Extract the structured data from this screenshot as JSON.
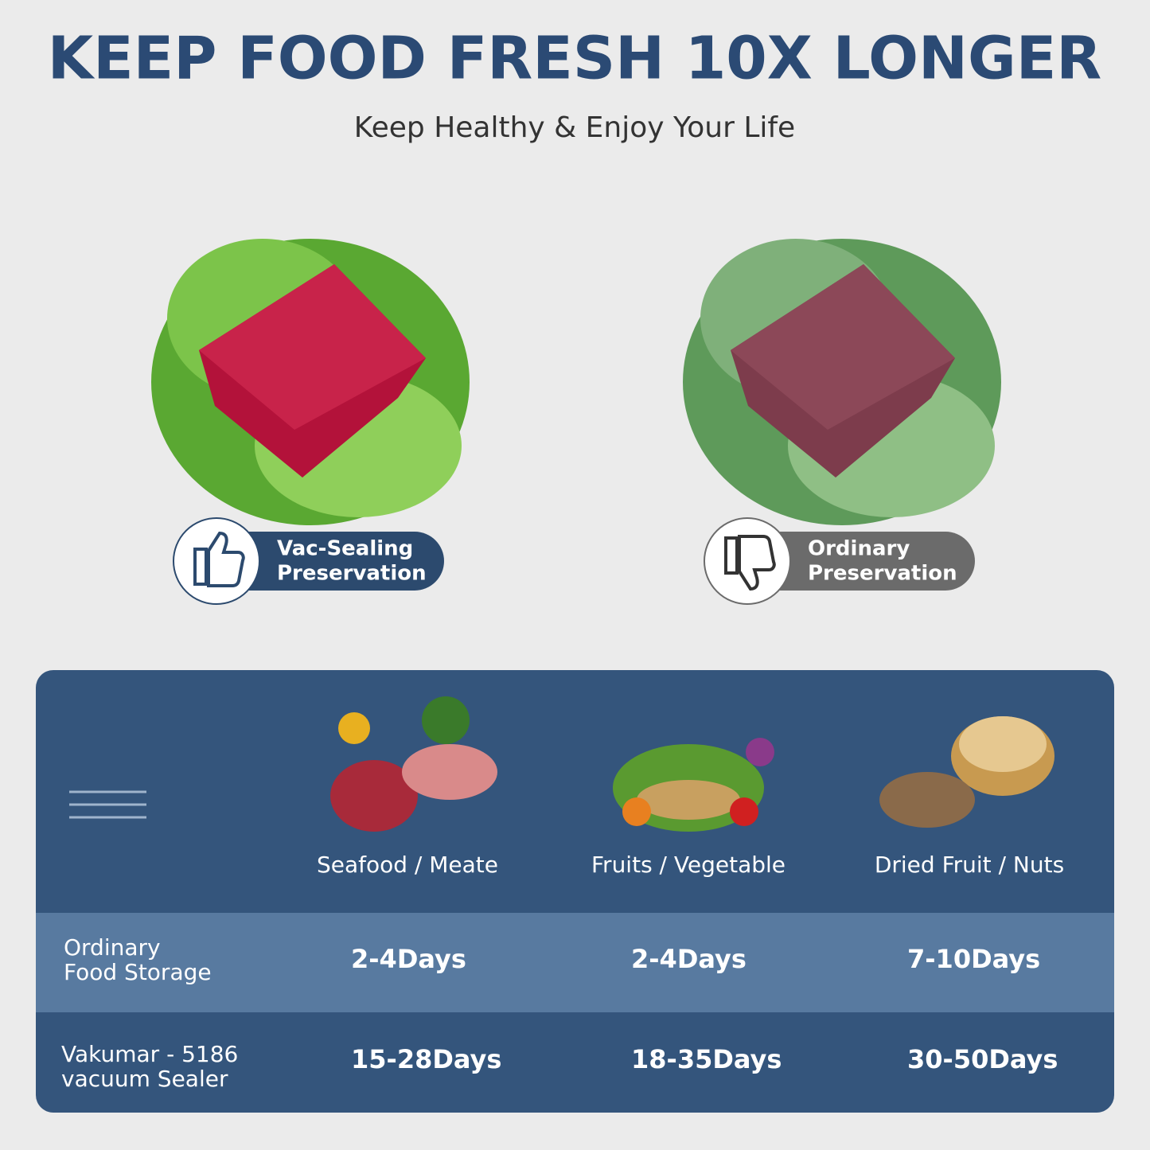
{
  "header": {
    "title": "KEEP FOOD FRESH 10X LONGER",
    "subtitle": "Keep Healthy & Enjoy Your Life"
  },
  "comparison": [
    {
      "label": [
        "Vac-Sealing",
        "Preservation"
      ]
    },
    {
      "label": [
        "Ordinary",
        "Preservation"
      ]
    }
  ],
  "table": {
    "columns": [
      "Seafood / Meate",
      "Fruits / Vegetable",
      "Dried Fruit / Nuts"
    ],
    "rows": [
      {
        "label": [
          "Ordinary",
          "Food Storage"
        ],
        "cells": [
          "2-4Days",
          "2-4Days",
          "7-10Days"
        ]
      },
      {
        "label": [
          "Vakumar - 5186",
          "vacuum Sealer"
        ],
        "cells": [
          "15-28Days",
          "18-35Days",
          "30-50Days"
        ]
      }
    ]
  }
}
